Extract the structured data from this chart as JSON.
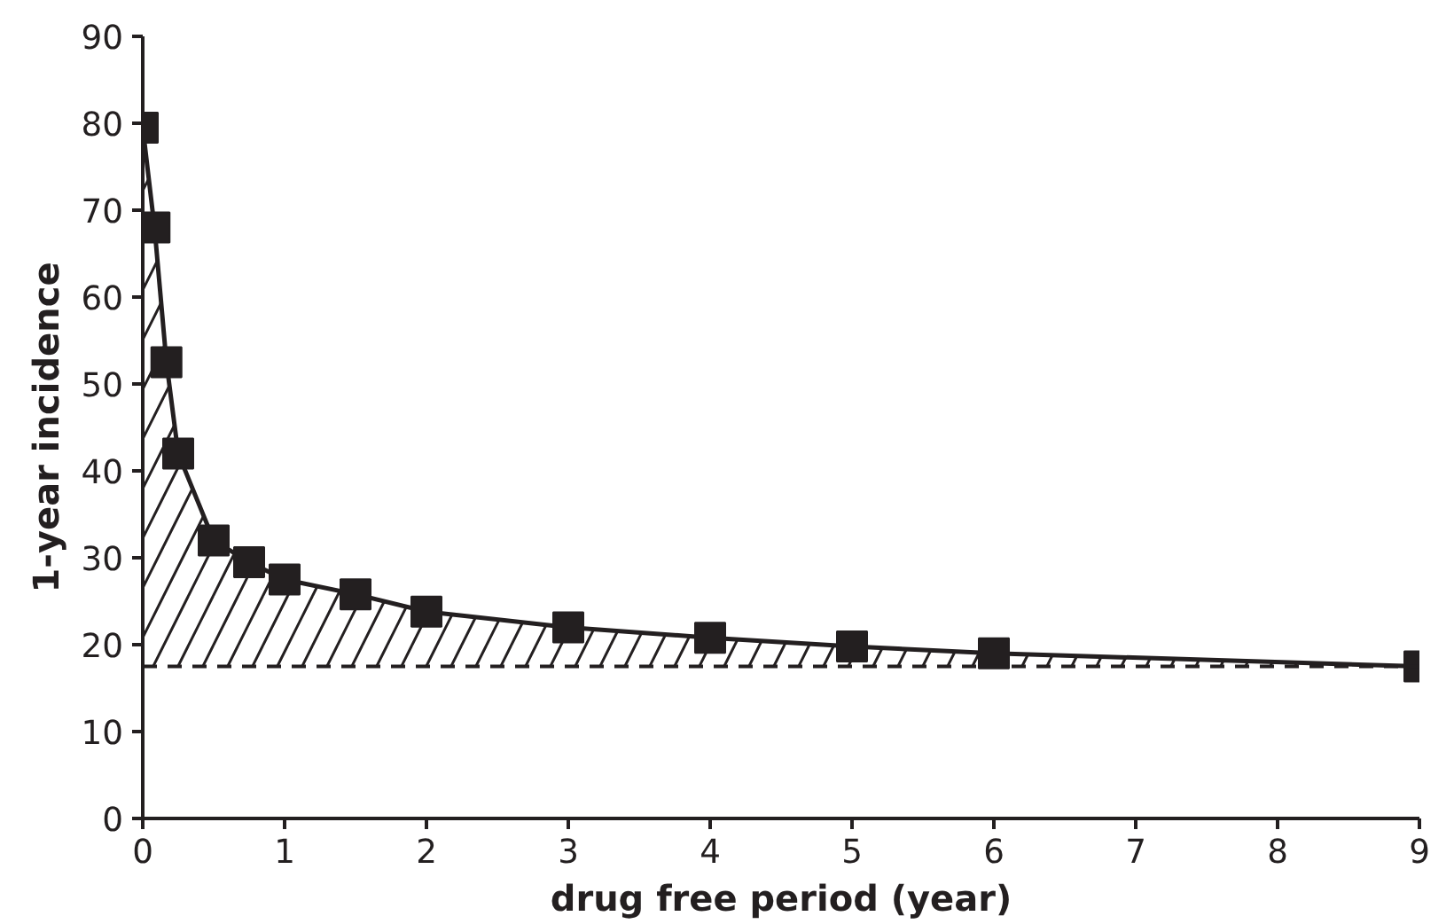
{
  "chart_data": {
    "type": "line",
    "xlabel": "drug free period (year)",
    "ylabel": "1-year incidence",
    "x": [
      0,
      0.083,
      0.167,
      0.25,
      0.5,
      0.75,
      1,
      1.5,
      2,
      3,
      4,
      5,
      6,
      9
    ],
    "series": [
      {
        "color": "#231f20",
        "values": [
          79.5,
          68,
          52.5,
          42,
          32,
          29.5,
          27.5,
          25.8,
          23.8,
          22,
          20.8,
          19.8,
          19,
          17.5
        ],
        "lower": [
          17.5,
          17.5,
          17.5,
          17.5,
          17.5,
          17.5,
          17.5,
          17.5,
          17.5,
          17.5,
          17.5,
          17.5,
          17.5,
          17.5
        ],
        "upper": [
          79.5,
          68,
          52.5,
          42,
          32,
          29.5,
          27.5,
          25.8,
          23.8,
          22,
          20.8,
          19.8,
          19,
          17.5
        ]
      }
    ],
    "ref_lines": [
      {
        "axis": "y",
        "value": 17.5,
        "color": "#231f20",
        "line_style": "dashed"
      }
    ],
    "marker": "square",
    "line_style": "solid",
    "grid": false,
    "xlim": [
      0,
      9
    ],
    "xticks": [
      0,
      1,
      2,
      3,
      4,
      5,
      6,
      7,
      8,
      9
    ],
    "ylim": [
      0,
      90
    ],
    "yticks": [
      0,
      10,
      20,
      30,
      40,
      50,
      60,
      70,
      80,
      90
    ]
  }
}
